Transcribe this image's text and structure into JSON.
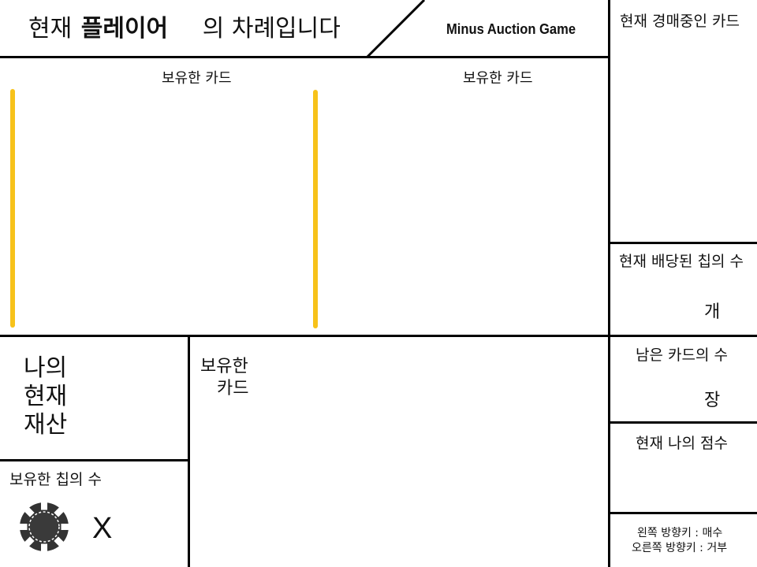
{
  "header": {
    "turn_prefix": "현재",
    "turn_player": "플레이어",
    "turn_suffix": "의 차례입니다",
    "game_title": "Minus Auction Game"
  },
  "opponents": [
    {
      "cards_label": "보유한 카드"
    },
    {
      "cards_label": "보유한 카드"
    }
  ],
  "sidebar": {
    "auction_card_label": "현재 경매중인 카드",
    "allocated_chips_label": "현재 배당된 칩의 수",
    "allocated_chips_unit": "개",
    "remaining_cards_label": "남은 카드의 수",
    "remaining_cards_unit": "장",
    "my_score_label": "현재 나의 점수",
    "controls": {
      "left": "왼쪽 방향키 : 매수",
      "right": "오른쪽 방향키 : 거부"
    }
  },
  "me": {
    "assets_line1": "나의",
    "assets_line2": "현재",
    "assets_line3": "재산",
    "cards_line1": "보유한",
    "cards_line2": "카드",
    "chips_label": "보유한 칩의 수",
    "chip_count_marker": "X"
  },
  "colors": {
    "highlight": "#f7c21a",
    "chip": "#333333"
  },
  "icons": {
    "chip": "poker-chip-icon"
  }
}
